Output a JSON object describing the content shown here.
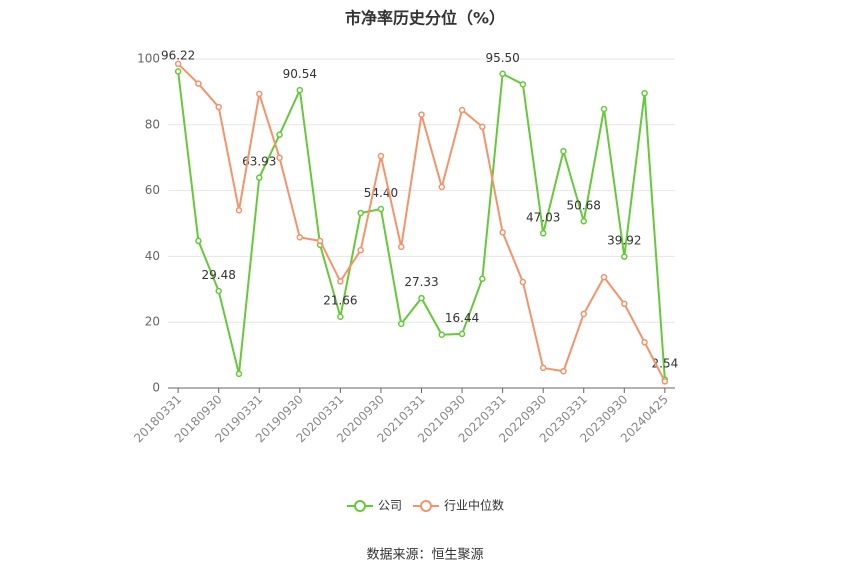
{
  "chart_data": {
    "type": "line",
    "title": "市净率历史分位（%）",
    "categories": [
      "20180331",
      null,
      "20180930",
      null,
      "20190331",
      null,
      "20190930",
      null,
      "20200331",
      null,
      "20200930",
      null,
      "20210331",
      null,
      "20210930",
      null,
      "20220331",
      null,
      "20220930",
      null,
      "20230331",
      null,
      "20230930",
      null,
      "20240425"
    ],
    "series": [
      {
        "name": "公司",
        "color": "#66c93a",
        "values": [
          96.22,
          44.7,
          29.48,
          4.3,
          63.93,
          77,
          90.54,
          43.5,
          21.66,
          53.2,
          54.4,
          19.5,
          27.33,
          16.2,
          16.44,
          33.2,
          95.5,
          92.3,
          47.03,
          72.0,
          50.68,
          84.8,
          39.92,
          89.6,
          2.54
        ],
        "value_labels": [
          "96.22",
          null,
          "29.48",
          null,
          "63.93",
          null,
          "90.54",
          null,
          "21.66",
          null,
          "54.40",
          null,
          "27.33",
          null,
          "16.44",
          null,
          "95.50",
          null,
          "47.03",
          null,
          "50.68",
          null,
          "39.92",
          null,
          "2.54"
        ]
      },
      {
        "name": "行业中位数",
        "color": "#f5936a",
        "values": [
          98.5,
          92.5,
          85.4,
          54,
          89.4,
          70,
          45.8,
          44.7,
          32.4,
          41.9,
          70.5,
          42.9,
          83.1,
          61.1,
          84.5,
          79.4,
          47.3,
          32.2,
          6.1,
          5.1,
          22.5,
          33.7,
          25.6,
          13.9,
          2.0
        ]
      }
    ],
    "ylim": [
      0,
      100
    ],
    "yticks": [
      0,
      20,
      40,
      60,
      80,
      100
    ],
    "grid": true,
    "legend": "bottom",
    "source": "数据来源：恒生聚源"
  }
}
